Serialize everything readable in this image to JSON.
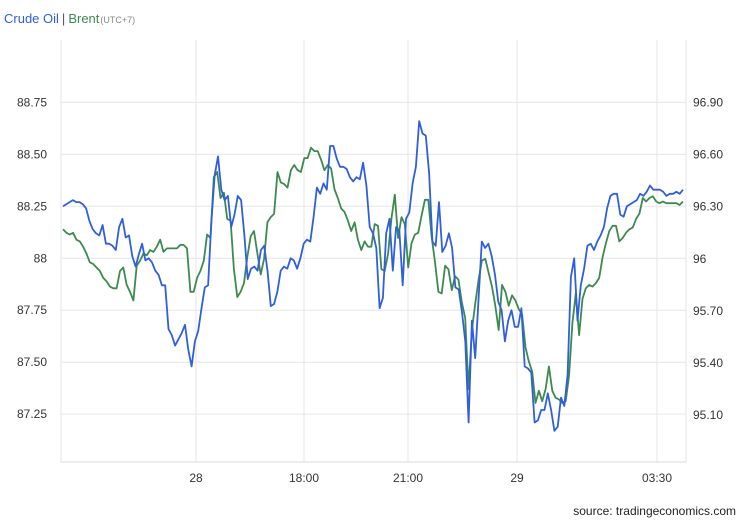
{
  "colors": {
    "series1": "#2f5fe0",
    "series2": "#3d8a4f",
    "grid": "#e6e6e6"
  },
  "legend": {
    "series1": "Crude Oil",
    "separator": "|",
    "series2": "Brent",
    "timezone": "(UTC+7)"
  },
  "source": "source: tradingeconomics.com",
  "chart_data": {
    "type": "line",
    "grid": true,
    "legend_position": "top-left",
    "x_ticks": [
      "28",
      "18:00",
      "21:00",
      "29",
      "03:30"
    ],
    "x_range": [
      0,
      179
    ],
    "left_axis": {
      "ticks": [
        "87.25",
        "87.50",
        "87.75",
        "88",
        "88.25",
        "88.50",
        "88.75"
      ],
      "range": [
        87.02,
        89.05
      ]
    },
    "right_axis": {
      "ticks": [
        "95.10",
        "95.40",
        "95.70",
        "96",
        "96.30",
        "96.60",
        "96.90"
      ],
      "range": [
        94.83,
        97.26
      ]
    },
    "series": [
      {
        "name": "Crude Oil",
        "axis": "left",
        "values": [
          88.25,
          88.26,
          88.27,
          88.28,
          88.27,
          88.27,
          88.26,
          88.24,
          88.18,
          88.14,
          88.12,
          88.11,
          88.16,
          88.07,
          88.07,
          88.06,
          88.04,
          88.15,
          88.19,
          88.1,
          88.11,
          88.01,
          87.96,
          88.02,
          88.07,
          87.99,
          88.0,
          87.98,
          87.94,
          87.92,
          87.87,
          87.87,
          87.66,
          87.63,
          87.58,
          87.61,
          87.64,
          87.68,
          87.56,
          87.48,
          87.6,
          87.65,
          87.76,
          87.86,
          87.87,
          88.18,
          88.4,
          88.49,
          88.33,
          88.28,
          88.3,
          88.15,
          88.21,
          88.3,
          88.28,
          88.11,
          87.9,
          87.95,
          87.96,
          87.94,
          88.04,
          88.06,
          87.94,
          87.77,
          87.78,
          87.84,
          87.94,
          87.96,
          87.95,
          88.0,
          87.99,
          87.95,
          88.0,
          88.07,
          88.09,
          88.08,
          88.2,
          88.34,
          88.31,
          88.36,
          88.33,
          88.54,
          88.54,
          88.48,
          88.44,
          88.44,
          88.43,
          88.39,
          88.37,
          88.39,
          88.38,
          88.46,
          88.35,
          88.15,
          88.12,
          88.05,
          87.76,
          87.81,
          88.12,
          88.19,
          87.94,
          88.15,
          88.13,
          87.87,
          88.19,
          88.22,
          88.36,
          88.44,
          88.66,
          88.6,
          88.59,
          88.41,
          88.08,
          88.06,
          88.27,
          88.03,
          88.06,
          88.12,
          88.05,
          87.86,
          87.85,
          87.74,
          87.6,
          87.21,
          87.7,
          87.52,
          87.8,
          88.08,
          88.05,
          88.07,
          88.01,
          87.92,
          87.79,
          87.75,
          87.6,
          87.7,
          87.75,
          87.67,
          87.67,
          87.76,
          87.48,
          87.47,
          87.45,
          87.21,
          87.22,
          87.27,
          87.27,
          87.35,
          87.27,
          87.17,
          87.19,
          87.33,
          87.29,
          87.44,
          87.91,
          88.0,
          87.7,
          87.87,
          87.95,
          88.06,
          88.07,
          88.04,
          88.08,
          88.11,
          88.15,
          88.24,
          88.3,
          88.31,
          88.31,
          88.21,
          88.2,
          88.25,
          88.26,
          88.27,
          88.28,
          88.31,
          88.3,
          88.32,
          88.35,
          88.33,
          88.33,
          88.33,
          88.32,
          88.3,
          88.31,
          88.31,
          88.32,
          88.31,
          88.33
        ]
      },
      {
        "name": "Brent",
        "axis": "right",
        "values": [
          96.17,
          96.15,
          96.14,
          96.15,
          96.11,
          96.1,
          96.07,
          96.03,
          95.98,
          95.97,
          95.95,
          95.93,
          95.89,
          95.87,
          95.84,
          95.83,
          95.83,
          95.93,
          95.95,
          95.85,
          95.81,
          95.76,
          95.96,
          95.99,
          96.03,
          96.02,
          96.05,
          96.04,
          96.07,
          96.11,
          96.04,
          96.06,
          96.06,
          96.06,
          96.06,
          96.08,
          96.08,
          96.06,
          95.81,
          95.81,
          95.89,
          95.93,
          95.99,
          96.14,
          96.12,
          96.47,
          96.5,
          96.35,
          96.38,
          96.23,
          96.22,
          95.94,
          95.78,
          95.81,
          95.86,
          96.01,
          96.13,
          96.16,
          96.03,
          95.91,
          96.0,
          96.21,
          96.24,
          96.26,
          96.5,
          96.44,
          96.43,
          96.41,
          96.51,
          96.54,
          96.51,
          96.5,
          96.58,
          96.58,
          96.64,
          96.62,
          96.62,
          96.57,
          96.51,
          96.54,
          96.52,
          96.4,
          96.35,
          96.29,
          96.27,
          96.22,
          96.16,
          96.21,
          96.11,
          96.05,
          96.1,
          96.07,
          96.07,
          96.2,
          96.19,
          95.94,
          95.93,
          96.03,
          96.23,
          96.37,
          96.12,
          96.24,
          96.2,
          95.95,
          96.09,
          96.14,
          96.15,
          96.25,
          96.34,
          96.34,
          96.13,
          95.98,
          95.81,
          95.8,
          95.96,
          95.94,
          95.82,
          95.9,
          95.88,
          95.75,
          95.66,
          95.25,
          95.59,
          95.74,
          95.88,
          95.99,
          96.0,
          95.92,
          95.84,
          95.73,
          95.59,
          95.85,
          95.81,
          95.73,
          95.79,
          95.76,
          95.71,
          95.68,
          95.49,
          95.41,
          95.35,
          95.17,
          95.24,
          95.18,
          95.25,
          95.38,
          95.24,
          95.2,
          95.19,
          95.17,
          95.18,
          95.33,
          95.63,
          95.8,
          95.56,
          95.77,
          95.83,
          95.85,
          95.84,
          95.86,
          95.89,
          96.01,
          96.09,
          96.16,
          96.19,
          96.19,
          96.1,
          96.12,
          96.15,
          96.17,
          96.18,
          96.23,
          96.26,
          96.35,
          96.33,
          96.35,
          96.36,
          96.33,
          96.32,
          96.33,
          96.32,
          96.32,
          96.32,
          96.32,
          96.31,
          96.33
        ]
      }
    ]
  }
}
